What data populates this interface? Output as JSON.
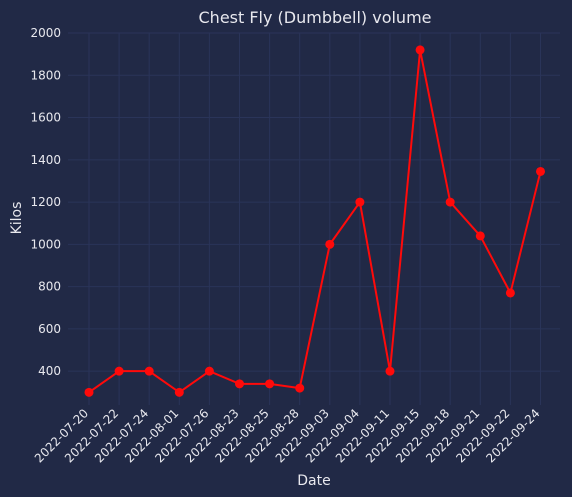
{
  "chart_data": {
    "type": "line",
    "title": "Chest Fly (Dumbbell) volume",
    "xlabel": "Date",
    "ylabel": "Kilos",
    "categories": [
      "2022-07-20",
      "2022-07-22",
      "2022-07-24",
      "2022-08-01",
      "2022-07-26",
      "2022-08-23",
      "2022-08-25",
      "2022-08-28",
      "2022-09-03",
      "2022-09-04",
      "2022-09-11",
      "2022-09-15",
      "2022-09-18",
      "2022-09-21",
      "2022-09-22",
      "2022-09-24"
    ],
    "series": [
      {
        "values": [
          300,
          400,
          400,
          300,
          400,
          340,
          340,
          320,
          1000,
          1200,
          400,
          1920,
          1200,
          1040,
          770,
          1345
        ]
      }
    ],
    "ylim": [
      240,
      2000
    ],
    "yticks": [
      400,
      600,
      800,
      1000,
      1200,
      1400,
      1600,
      1800,
      2000
    ],
    "grid": true,
    "colors": {
      "background": "#212946",
      "grid": "#2A3459",
      "line": "#ff0a0a",
      "text": "#e8e8ee"
    }
  }
}
